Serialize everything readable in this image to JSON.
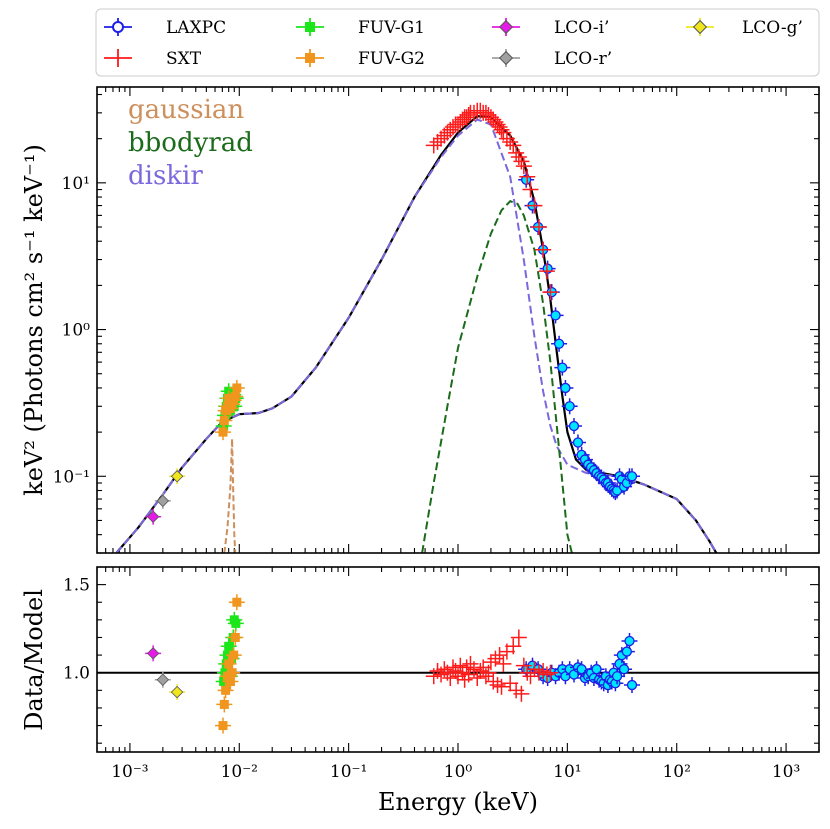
{
  "chart_data": [
    {
      "type": "scatter",
      "title": "",
      "xlabel": "",
      "ylabel": "keV² (Photons cm² s⁻¹ keV⁻¹)",
      "x_scale": "log",
      "y_scale": "log",
      "xlim": [
        0.0005,
        2000
      ],
      "ylim": [
        0.03,
        45
      ],
      "yticks": [
        {
          "value": 0.1,
          "label": "10⁻¹"
        },
        {
          "value": 1,
          "label": "10⁰"
        },
        {
          "value": 10,
          "label": "10¹"
        }
      ],
      "legend_position": "top (above plot, 4 columns)",
      "component_labels": [
        {
          "name": "gaussian",
          "color": "#cd8f5c"
        },
        {
          "name": "bbodyrad",
          "color": "#1a6b1a"
        },
        {
          "name": "diskir",
          "color": "#7b68dd"
        }
      ],
      "components": {
        "total_model": [
          [
            0.0005,
            0.0
          ],
          [
            0.00075,
            0.03
          ],
          [
            0.0012,
            0.045
          ],
          [
            0.002,
            0.075
          ],
          [
            0.003,
            0.115
          ],
          [
            0.005,
            0.18
          ],
          [
            0.007,
            0.235
          ],
          [
            0.01,
            0.265
          ],
          [
            0.015,
            0.27
          ],
          [
            0.02,
            0.29
          ],
          [
            0.03,
            0.35
          ],
          [
            0.05,
            0.55
          ],
          [
            0.1,
            1.2
          ],
          [
            0.2,
            3.0
          ],
          [
            0.4,
            8.0
          ],
          [
            0.7,
            15.5
          ],
          [
            1.0,
            22.0
          ],
          [
            1.5,
            28.5
          ],
          [
            2.0,
            28.0
          ],
          [
            3.0,
            21.0
          ],
          [
            4.0,
            14.0
          ],
          [
            5.0,
            7.5
          ],
          [
            6.0,
            3.5
          ],
          [
            7.0,
            1.6
          ],
          [
            8.0,
            0.7
          ],
          [
            9.0,
            0.35
          ],
          [
            10.0,
            0.2
          ],
          [
            12.0,
            0.13
          ],
          [
            15.0,
            0.11
          ],
          [
            30.0,
            0.1
          ],
          [
            50.0,
            0.088
          ],
          [
            100.0,
            0.07
          ],
          [
            150.0,
            0.05
          ],
          [
            200.0,
            0.036
          ],
          [
            250.0,
            0.027
          ]
        ],
        "diskir": [
          [
            0.0005,
            0.0
          ],
          [
            0.00075,
            0.03
          ],
          [
            0.0012,
            0.045
          ],
          [
            0.002,
            0.075
          ],
          [
            0.003,
            0.115
          ],
          [
            0.005,
            0.18
          ],
          [
            0.007,
            0.235
          ],
          [
            0.01,
            0.265
          ],
          [
            0.015,
            0.27
          ],
          [
            0.02,
            0.29
          ],
          [
            0.03,
            0.35
          ],
          [
            0.05,
            0.55
          ],
          [
            0.1,
            1.2
          ],
          [
            0.2,
            3.0
          ],
          [
            0.4,
            8.0
          ],
          [
            0.7,
            15.0
          ],
          [
            1.0,
            21.0
          ],
          [
            1.5,
            27.0
          ],
          [
            2.0,
            25.0
          ],
          [
            3.0,
            11.0
          ],
          [
            4.0,
            3.0
          ],
          [
            5.0,
            0.9
          ],
          [
            6.0,
            0.38
          ],
          [
            7.0,
            0.22
          ],
          [
            8.0,
            0.16
          ],
          [
            10.0,
            0.12
          ],
          [
            15.0,
            0.105
          ],
          [
            30.0,
            0.1
          ],
          [
            50.0,
            0.088
          ],
          [
            100.0,
            0.07
          ],
          [
            150.0,
            0.05
          ],
          [
            200.0,
            0.036
          ],
          [
            250.0,
            0.027
          ]
        ],
        "bbodyrad": [
          [
            0.47,
            0.03
          ],
          [
            0.6,
            0.09
          ],
          [
            0.8,
            0.3
          ],
          [
            1.0,
            0.75
          ],
          [
            1.5,
            2.3
          ],
          [
            2.0,
            4.5
          ],
          [
            2.5,
            6.5
          ],
          [
            3.0,
            7.5
          ],
          [
            3.5,
            7.2
          ],
          [
            4.0,
            6.0
          ],
          [
            5.0,
            3.5
          ],
          [
            6.0,
            1.5
          ],
          [
            7.0,
            0.6
          ],
          [
            8.0,
            0.22
          ],
          [
            9.0,
            0.09
          ],
          [
            10.0,
            0.04
          ],
          [
            11.0,
            0.03
          ]
        ],
        "gaussian": [
          [
            0.0073,
            0.03
          ],
          [
            0.0078,
            0.045
          ],
          [
            0.0083,
            0.085
          ],
          [
            0.0086,
            0.18
          ],
          [
            0.0088,
            0.08
          ],
          [
            0.009,
            0.04
          ],
          [
            0.0092,
            0.03
          ]
        ]
      },
      "series": [
        {
          "name": "LAXPC",
          "color": "#1e1ee6",
          "marker": "circle-cyan-fill",
          "x": [
            4.2,
            4.8,
            5.4,
            6.0,
            6.6,
            7.2,
            7.8,
            8.4,
            9.0,
            9.6,
            10.5,
            11.5,
            12.5,
            13.5,
            14.5,
            15.5,
            16.5,
            17.5,
            18.5,
            19.5,
            20.5,
            21.5,
            22.5,
            23.5,
            24.5,
            25.5,
            26.5,
            27.5,
            28.5,
            30.0,
            31.5,
            33.0,
            35.0,
            37.0,
            39.0
          ],
          "y": [
            10.5,
            7.0,
            5.0,
            3.5,
            2.6,
            1.8,
            1.25,
            0.8,
            0.55,
            0.4,
            0.3,
            0.22,
            0.17,
            0.14,
            0.13,
            0.12,
            0.115,
            0.11,
            0.105,
            0.1,
            0.098,
            0.095,
            0.09,
            0.09,
            0.085,
            0.082,
            0.08,
            0.078,
            0.08,
            0.1,
            0.095,
            0.085,
            0.09,
            0.1,
            0.1
          ],
          "ratio": [
            1.02,
            1.04,
            1.02,
            0.98,
            0.97,
            1.0,
            0.98,
            1.0,
            1.02,
            0.98,
            1.02,
            0.99,
            1.03,
            1.02,
            0.97,
            0.98,
            1.0,
            0.97,
            1.02,
            0.96,
            0.95,
            0.94,
            0.98,
            0.93,
            0.96,
            0.95,
            1.0,
            0.94,
            0.98,
            1.05,
            1.1,
            1.02,
            1.12,
            1.18,
            0.93
          ]
        },
        {
          "name": "SXT",
          "color": "#ff1a1a",
          "marker": "cross",
          "x": [
            0.6,
            0.65,
            0.7,
            0.75,
            0.8,
            0.85,
            0.9,
            0.95,
            1.0,
            1.05,
            1.1,
            1.15,
            1.2,
            1.25,
            1.3,
            1.4,
            1.5,
            1.6,
            1.7,
            1.8,
            1.9,
            2.0,
            2.1,
            2.2,
            2.3,
            2.4,
            2.5,
            2.6,
            2.8,
            3.0,
            3.2,
            3.4,
            3.6,
            3.8,
            4.0,
            4.3,
            4.6,
            5.0,
            5.5,
            6.0,
            6.5,
            7.0
          ],
          "y": [
            18,
            19,
            20,
            21,
            22,
            23,
            24,
            25,
            25,
            26,
            27,
            28,
            28,
            29,
            30,
            30,
            31,
            31,
            30,
            30,
            29,
            28,
            27,
            26,
            25,
            24,
            23,
            22,
            20,
            19,
            18,
            16,
            15,
            14,
            13,
            11,
            9,
            7,
            5,
            3.5,
            2.5,
            1.8
          ],
          "ratio": [
            0.98,
            1.01,
            0.99,
            1.02,
            1.0,
            0.97,
            1.03,
            1.01,
            0.98,
            1.04,
            1.0,
            0.96,
            1.03,
            0.99,
            1.05,
            1.02,
            0.97,
            1.01,
            1.03,
            0.98,
            1.0,
            1.06,
            0.95,
            1.08,
            0.93,
            1.1,
            0.92,
            1.05,
            1.12,
            0.94,
            1.15,
            0.9,
            1.2,
            0.88,
            1.04,
            1.0,
            0.98,
            1.02,
            1.0,
            1.01,
            0.99,
            1.0
          ]
        },
        {
          "name": "FUV-G1",
          "color": "#1ae61a",
          "marker": "square-green",
          "x": [
            0.0072,
            0.0074,
            0.0076,
            0.0078,
            0.008,
            0.0082,
            0.0085,
            0.0088,
            0.009,
            0.0093
          ],
          "y": [
            0.22,
            0.26,
            0.3,
            0.34,
            0.38,
            0.28,
            0.32,
            0.36,
            0.3,
            0.34
          ],
          "ratio": [
            0.95,
            1.0,
            1.05,
            1.1,
            1.15,
            0.98,
            1.08,
            1.2,
            1.3,
            1.28
          ]
        },
        {
          "name": "FUV-G2",
          "color": "#f0961e",
          "marker": "square-orange",
          "x": [
            0.0071,
            0.0073,
            0.0075,
            0.0078,
            0.008,
            0.0083,
            0.0086,
            0.0089,
            0.0092,
            0.0095
          ],
          "y": [
            0.2,
            0.24,
            0.28,
            0.3,
            0.34,
            0.29,
            0.31,
            0.33,
            0.35,
            0.4
          ],
          "ratio": [
            0.7,
            0.82,
            0.9,
            0.98,
            1.05,
            0.95,
            1.0,
            1.1,
            1.2,
            1.4
          ]
        },
        {
          "name": "LCO-i’",
          "color": "#e61ae6",
          "marker": "diamond-magenta",
          "x": [
            0.00163
          ],
          "y": [
            0.053
          ],
          "ratio": [
            1.11
          ]
        },
        {
          "name": "LCO-r’",
          "color": "#a0a0a0",
          "marker": "diamond-grey",
          "x": [
            0.002
          ],
          "y": [
            0.068
          ],
          "ratio": [
            0.96
          ]
        },
        {
          "name": "LCO-g’",
          "color": "#f0e61e",
          "marker": "diamond-yellow",
          "x": [
            0.0027
          ],
          "y": [
            0.1
          ],
          "ratio": [
            0.89
          ]
        }
      ]
    },
    {
      "type": "scatter",
      "title": "",
      "xlabel": "Energy (keV)",
      "ylabel": "Data/Model",
      "x_scale": "log",
      "y_scale": "linear",
      "xlim": [
        0.0005,
        2000
      ],
      "ylim": [
        0.55,
        1.6
      ],
      "xticks": [
        {
          "value": 0.001,
          "label": "10⁻³"
        },
        {
          "value": 0.01,
          "label": "10⁻²"
        },
        {
          "value": 0.1,
          "label": "10⁻¹"
        },
        {
          "value": 1,
          "label": "10⁰"
        },
        {
          "value": 10,
          "label": "10¹"
        },
        {
          "value": 100,
          "label": "10²"
        },
        {
          "value": 1000,
          "label": "10³"
        }
      ],
      "yticks": [
        {
          "value": 1.0,
          "label": "1.0"
        },
        {
          "value": 1.5,
          "label": "1.5"
        }
      ],
      "reference_line": 1.0,
      "note": "residual ratios are stored per series in chart_data[0].series[].ratio"
    }
  ]
}
